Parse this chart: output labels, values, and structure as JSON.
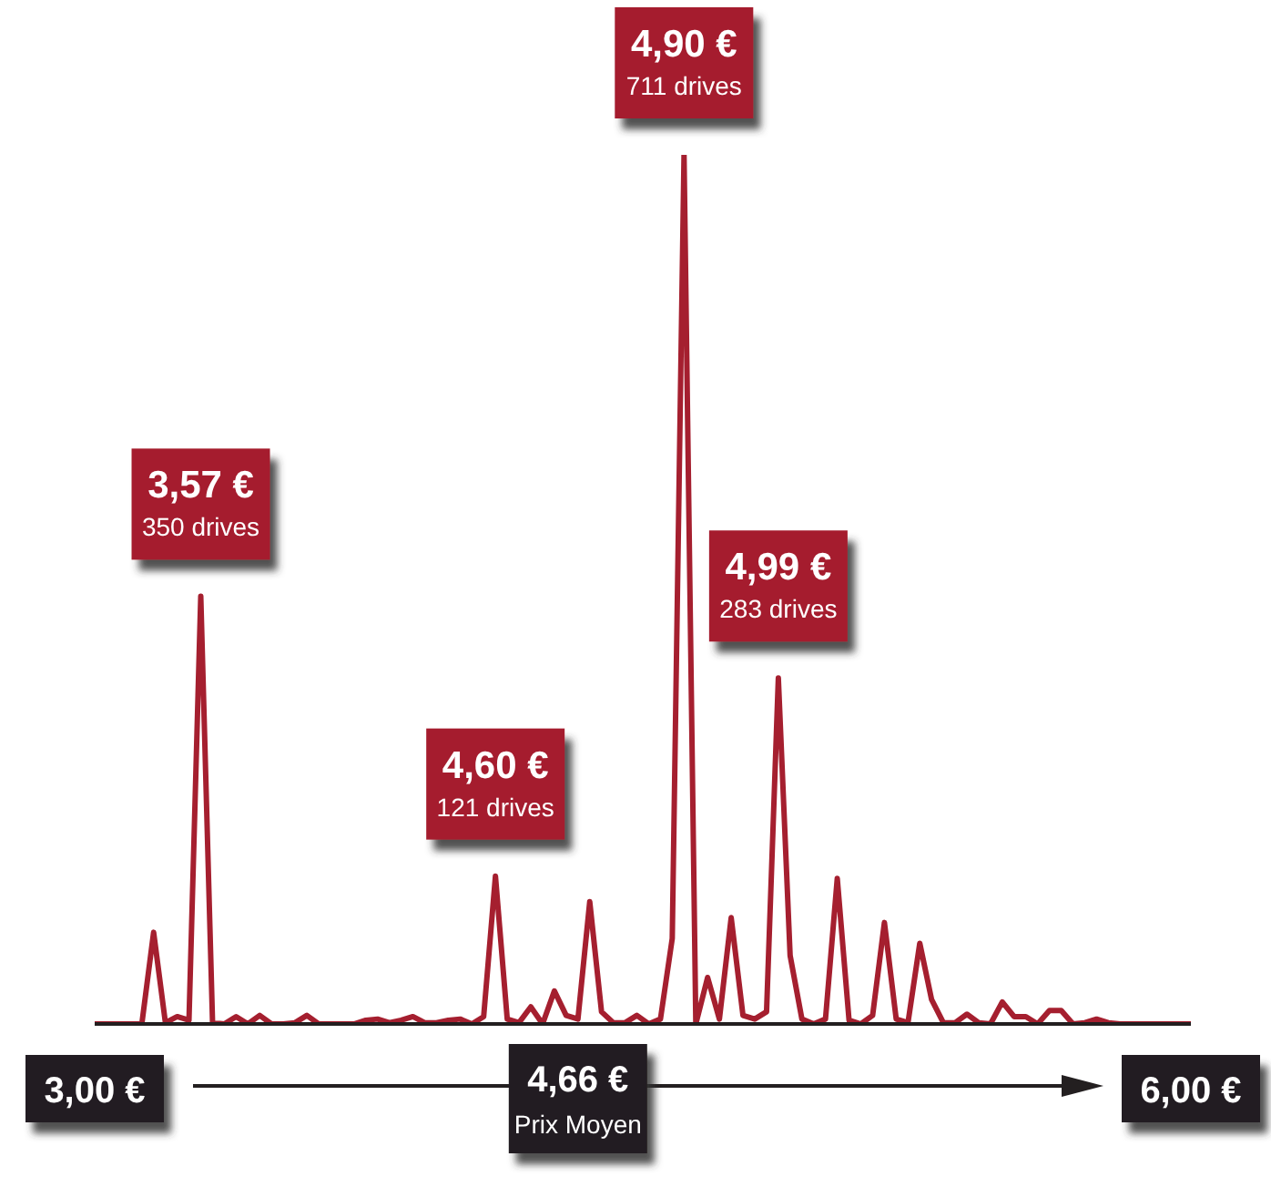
{
  "chart_data": {
    "type": "line",
    "categories": [
      "3,00 €",
      null,
      null,
      null,
      null,
      null,
      null,
      null,
      null,
      null,
      null,
      null,
      null,
      null,
      null,
      null,
      null,
      null,
      null,
      null,
      null,
      null,
      null,
      null,
      null,
      null,
      null,
      null,
      null,
      null,
      null,
      null,
      null,
      null,
      null,
      null,
      null,
      null,
      null,
      null,
      null,
      "4,66 €",
      null,
      null,
      null,
      null,
      null,
      null,
      null,
      null,
      null,
      null,
      null,
      null,
      null,
      null,
      null,
      null,
      null,
      null,
      null,
      null,
      null,
      null,
      null,
      null,
      null,
      null,
      null,
      null,
      null,
      null,
      null,
      null,
      null,
      null,
      null,
      null,
      null,
      null,
      null,
      null,
      null,
      null,
      null,
      null,
      null,
      null,
      null,
      null,
      null,
      null,
      null,
      "6,00 €"
    ],
    "values": [
      0,
      0,
      0,
      0,
      0,
      75,
      1,
      6,
      3,
      350,
      1,
      0,
      6,
      0,
      7,
      0,
      0,
      1,
      7,
      0,
      0,
      0,
      0,
      3,
      4,
      1,
      3,
      6,
      1,
      1,
      3,
      4,
      0,
      6,
      121,
      4,
      1,
      14,
      0,
      27,
      7,
      4,
      100,
      10,
      1,
      1,
      7,
      0,
      4,
      70,
      711,
      0,
      38,
      4,
      87,
      7,
      4,
      10,
      283,
      56,
      4,
      0,
      4,
      119,
      3,
      0,
      7,
      83,
      4,
      1,
      66,
      20,
      1,
      1,
      8,
      1,
      0,
      18,
      6,
      6,
      0,
      11,
      11,
      0,
      1,
      4,
      1,
      0,
      0,
      0,
      0,
      0,
      0,
      0
    ],
    "value_labels": [
      null,
      null,
      null,
      null,
      null,
      null,
      null,
      null,
      null,
      "3,57 €\n350 drives",
      null,
      null,
      null,
      null,
      null,
      null,
      null,
      null,
      null,
      null,
      null,
      null,
      null,
      null,
      null,
      null,
      null,
      null,
      null,
      null,
      null,
      null,
      null,
      null,
      "4,60 €\n121 drives",
      null,
      null,
      null,
      null,
      null,
      null,
      null,
      null,
      null,
      null,
      null,
      null,
      null,
      null,
      null,
      "4,90 €\n711 drives",
      null,
      null,
      null,
      null,
      null,
      null,
      null,
      "4,99 €\n283 drives",
      null,
      null,
      null,
      null,
      null,
      null,
      null,
      null,
      null,
      null,
      null,
      null,
      null,
      null,
      null,
      null,
      null,
      null,
      null,
      null,
      null,
      null,
      null,
      null,
      null,
      null,
      null,
      null,
      null,
      null,
      null,
      null,
      null,
      null,
      null
    ],
    "color": "#a51f2f",
    "tick_labels": "x",
    "marker": "none",
    "annotations": [
      "Prix Moyen"
    ]
  }
}
